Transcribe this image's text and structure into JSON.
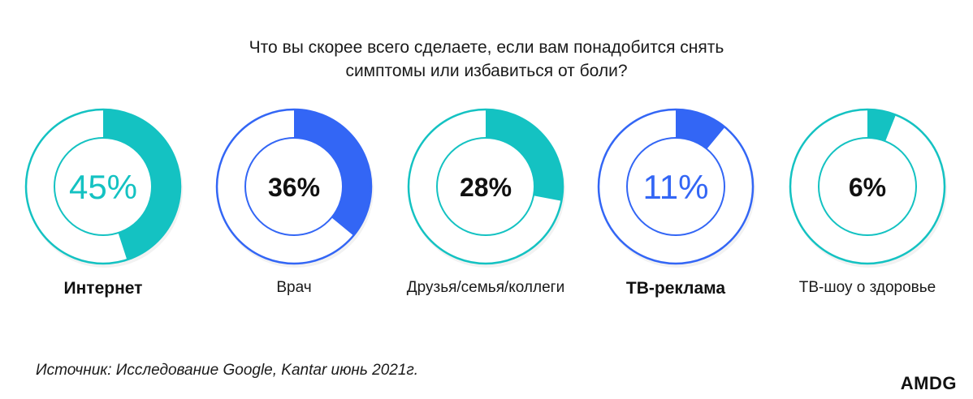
{
  "title_lines": [
    "Что вы скорее всего сделаете, если вам понадобится снять",
    "симптомы или избавиться от боли?"
  ],
  "chart_data": {
    "type": "pie",
    "variant": "donut",
    "categories": [
      "Интернет",
      "Врач",
      "Друзья/семья/коллеги",
      "ТВ-реклама",
      "ТВ-шоу о здоровье"
    ],
    "values": [
      45,
      36,
      28,
      11,
      6
    ],
    "value_labels": [
      "45%",
      "36%",
      "28%",
      "11%",
      "6%"
    ],
    "colors": [
      "#14C2C2",
      "#3366F5",
      "#14C2C2",
      "#3366F5",
      "#14C2C2"
    ],
    "highlighted": [
      true,
      false,
      false,
      true,
      false
    ]
  },
  "source": "Источник: Исследование Google, Kantar июнь 2021г.",
  "logo": "AMDG"
}
